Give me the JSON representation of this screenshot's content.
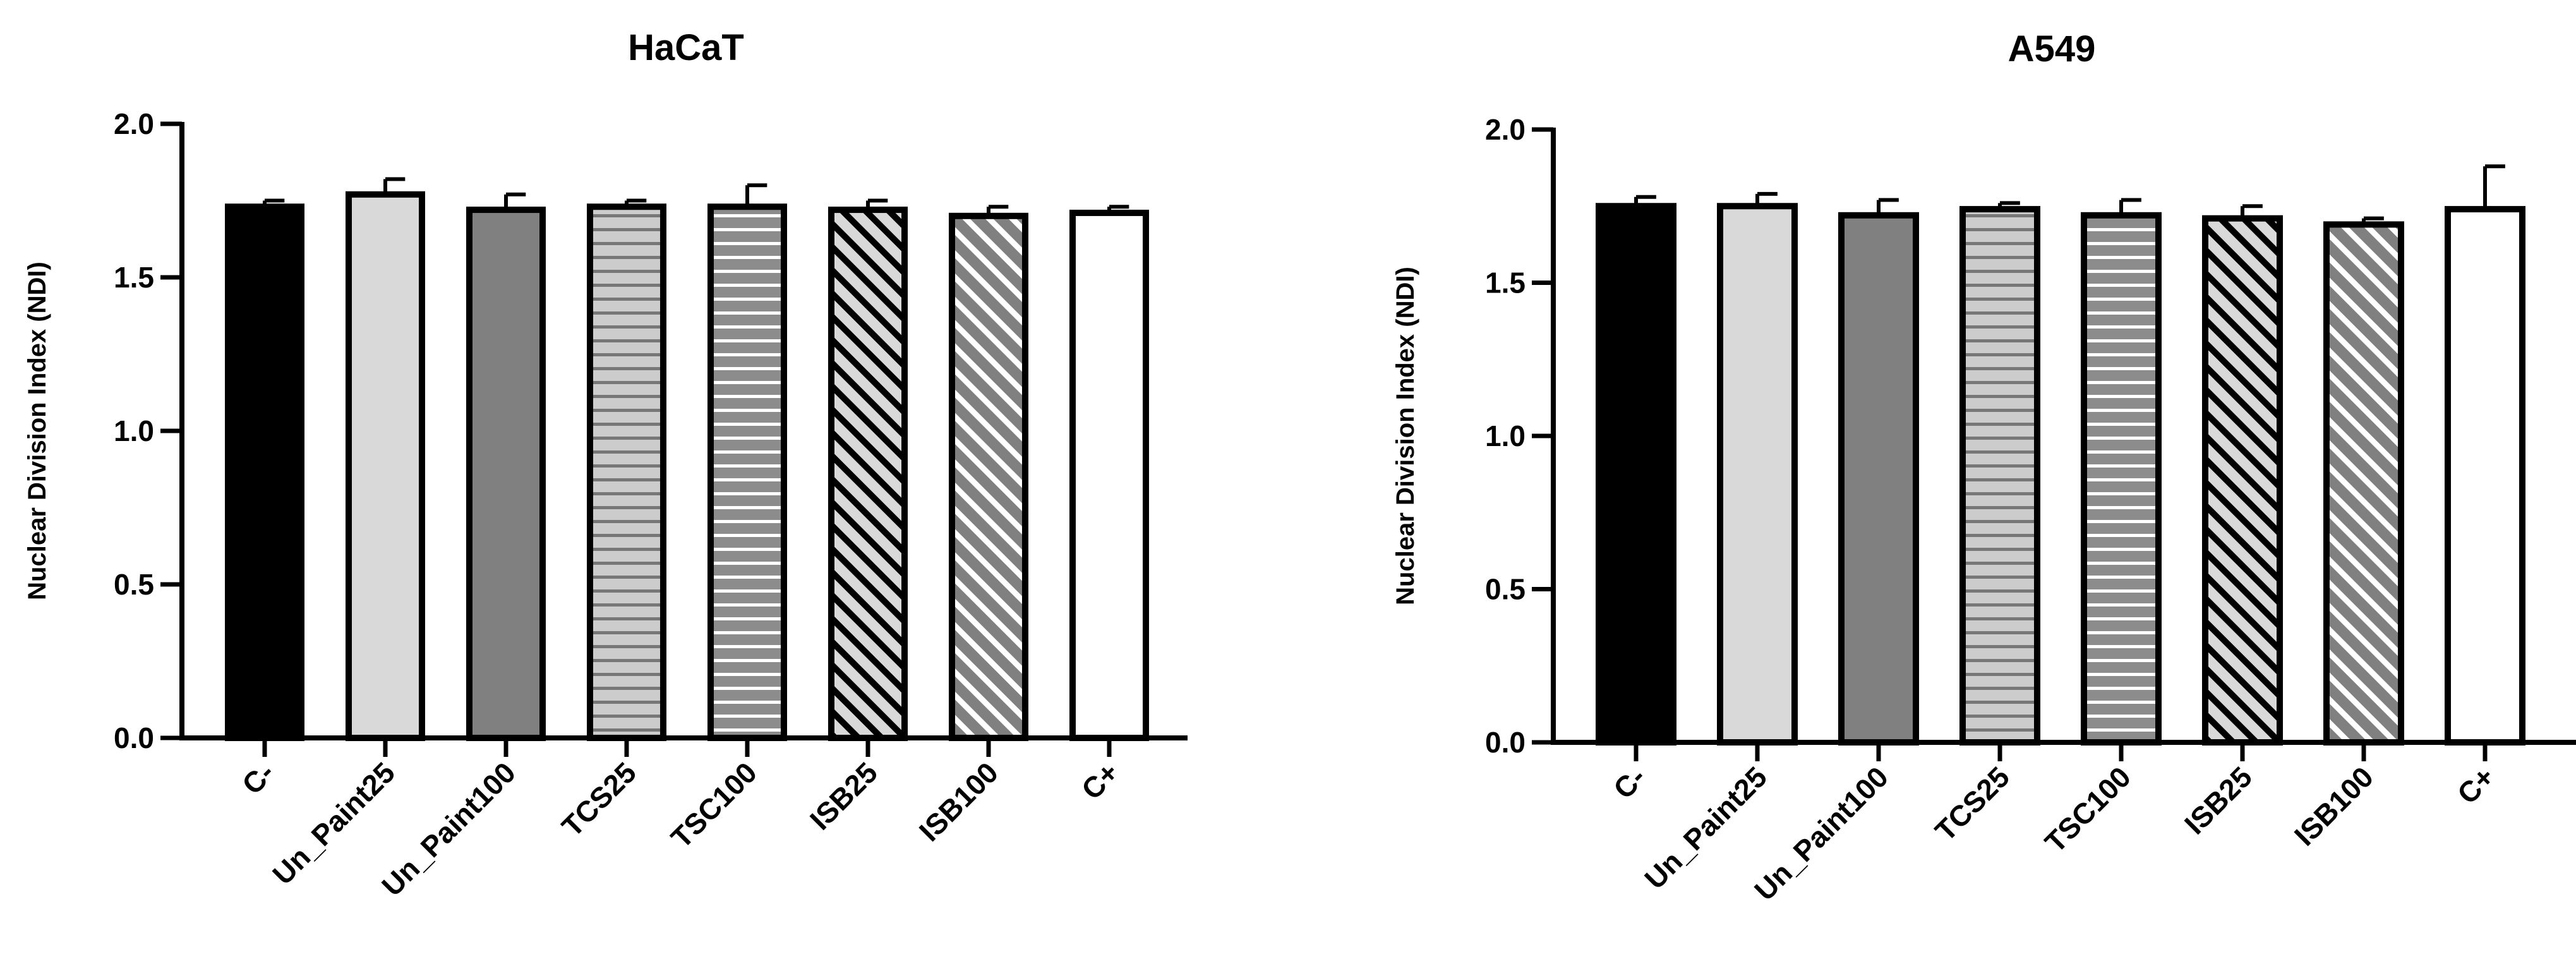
{
  "chart_data": [
    {
      "type": "bar",
      "title": "HaCaT",
      "ylabel": "Nuclear Division Index (NDI)",
      "xlabel": "",
      "ylim": [
        0,
        2.0
      ],
      "yticks": [
        "0.0",
        "0.5",
        "1.0",
        "1.5",
        "2.0"
      ],
      "categories": [
        "C-",
        "Un_Paint25",
        "Un_Paint100",
        "TCS25",
        "TSC100",
        "ISB25",
        "ISB100",
        "C+"
      ],
      "values": [
        1.73,
        1.77,
        1.72,
        1.73,
        1.73,
        1.72,
        1.7,
        1.71
      ],
      "errors": [
        0.02,
        0.05,
        0.05,
        0.02,
        0.07,
        0.03,
        0.03,
        0.02
      ],
      "grid": false,
      "legend": "none"
    },
    {
      "type": "bar",
      "title": "A549",
      "ylabel": "Nuclear Division Index (NDI)",
      "xlabel": "",
      "ylim": [
        0,
        2.0
      ],
      "yticks": [
        "0.0",
        "0.5",
        "1.0",
        "1.5",
        "2.0"
      ],
      "categories": [
        "C-",
        "Un_Paint25",
        "Un_Paint100",
        "TCS25",
        "TSC100",
        "ISB25",
        "ISB100",
        "C+"
      ],
      "values": [
        1.75,
        1.75,
        1.72,
        1.74,
        1.72,
        1.71,
        1.69,
        1.74
      ],
      "errors": [
        0.03,
        0.04,
        0.05,
        0.02,
        0.05,
        0.04,
        0.02,
        0.14
      ],
      "grid": false,
      "legend": "none"
    }
  ],
  "bar_styles": [
    {
      "fill": "#000000",
      "pattern": "solid"
    },
    {
      "fill": "#d9d9d9",
      "pattern": "solid"
    },
    {
      "fill": "#808080",
      "pattern": "solid"
    },
    {
      "fill": "#cccccc",
      "pattern": "horizontal-lines",
      "line": "#777777"
    },
    {
      "fill": "#8c8c8c",
      "pattern": "horizontal-lines",
      "line": "#ffffff"
    },
    {
      "fill": "#d9d9d9",
      "pattern": "diagonal-lines",
      "line": "#000000"
    },
    {
      "fill": "#808080",
      "pattern": "diagonal-lines",
      "line": "#ffffff"
    },
    {
      "fill": "#ffffff",
      "pattern": "solid"
    }
  ]
}
